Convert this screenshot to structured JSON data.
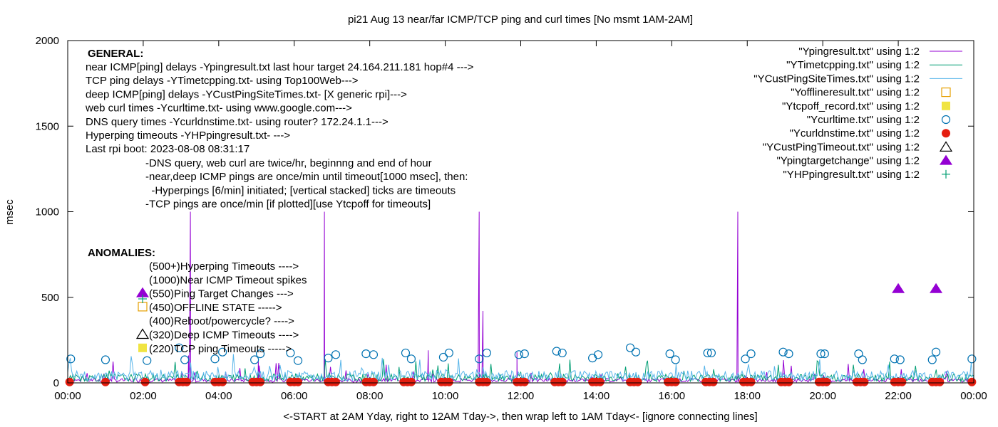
{
  "chart_data": {
    "type": "line",
    "title": "pi21 Aug 13  near/far ICMP/TCP ping and curl times [No msmt 1AM-2AM]",
    "xlabel": "<-START at 2AM Yday, right to 12AM Tday->, then wrap left to 1AM Tday<- [ignore connecting lines]",
    "ylabel": "msec",
    "ylim": [
      0,
      2000
    ],
    "xlim": [
      0,
      24
    ],
    "grid": false,
    "legend_position": "top-right",
    "y_ticks": [
      "0",
      "500",
      "1000",
      "1500",
      "2000"
    ],
    "x_ticks": [
      "00:00",
      "02:00",
      "04:00",
      "06:00",
      "08:00",
      "10:00",
      "12:00",
      "14:00",
      "16:00",
      "18:00",
      "20:00",
      "22:00",
      "00:00"
    ],
    "series": [
      {
        "name": "\"Ypingresult.txt\" using 1:2",
        "color": "#9400d3",
        "marker": "line",
        "spikes": [
          [
            3.25,
            1000
          ],
          [
            6.8,
            1000
          ],
          [
            10.9,
            1000
          ],
          [
            17.75,
            1000
          ],
          [
            3.2,
            160
          ],
          [
            5.05,
            130
          ],
          [
            9.55,
            190
          ],
          [
            11.0,
            420
          ],
          [
            11.9,
            180
          ]
        ],
        "baseline": 20
      },
      {
        "name": "\"YTimetcpping.txt\" using 1:2",
        "color": "#009e73",
        "marker": "line",
        "baseline": 40
      },
      {
        "name": "\"YCustPingSiteTimes.txt\" using 1:2",
        "color": "#56b4e9",
        "marker": "line",
        "baseline": 55
      },
      {
        "name": "\"Yofflineresult.txt\" using 1:2",
        "color": "#e69f00",
        "marker": "open-square",
        "points": []
      },
      {
        "name": "\"Ytcpoff_record.txt\" using 1:2",
        "color": "#f0e442",
        "marker": "filled-square",
        "points": []
      },
      {
        "name": "\"Ycurltime.txt\" using 1:2",
        "color": "#0072b2",
        "marker": "open-circle",
        "points": [
          [
            0.08,
            140
          ],
          [
            1.0,
            135
          ],
          [
            2.1,
            130
          ],
          [
            2.95,
            205
          ],
          [
            3.1,
            135
          ],
          [
            3.9,
            140
          ],
          [
            4.1,
            180
          ],
          [
            4.95,
            135
          ],
          [
            5.1,
            170
          ],
          [
            5.9,
            175
          ],
          [
            6.1,
            130
          ],
          [
            6.9,
            145
          ],
          [
            7.1,
            165
          ],
          [
            7.9,
            170
          ],
          [
            8.1,
            165
          ],
          [
            8.95,
            175
          ],
          [
            9.1,
            140
          ],
          [
            9.95,
            150
          ],
          [
            10.1,
            175
          ],
          [
            10.9,
            140
          ],
          [
            11.1,
            175
          ],
          [
            11.95,
            165
          ],
          [
            12.1,
            170
          ],
          [
            12.95,
            185
          ],
          [
            13.1,
            175
          ],
          [
            13.9,
            145
          ],
          [
            14.05,
            165
          ],
          [
            14.9,
            205
          ],
          [
            15.05,
            180
          ],
          [
            15.95,
            170
          ],
          [
            16.1,
            135
          ],
          [
            16.95,
            175
          ],
          [
            17.05,
            175
          ],
          [
            17.95,
            140
          ],
          [
            18.1,
            170
          ],
          [
            18.95,
            180
          ],
          [
            19.1,
            170
          ],
          [
            19.95,
            170
          ],
          [
            20.05,
            170
          ],
          [
            20.95,
            170
          ],
          [
            21.05,
            135
          ],
          [
            21.9,
            140
          ],
          [
            22.05,
            135
          ],
          [
            22.9,
            135
          ],
          [
            23.0,
            180
          ],
          [
            23.95,
            140
          ]
        ]
      },
      {
        "name": "\"Ycurldnstime.txt\" using 1:2",
        "color": "#e51e10",
        "marker": "filled-circle",
        "points": [
          [
            0.05,
            5
          ],
          [
            1.0,
            5
          ],
          [
            2.05,
            5
          ],
          [
            2.95,
            5
          ],
          [
            3.05,
            5
          ],
          [
            3.15,
            5
          ],
          [
            3.9,
            5
          ],
          [
            4.0,
            5
          ],
          [
            4.1,
            5
          ],
          [
            4.9,
            5
          ],
          [
            5.0,
            5
          ],
          [
            5.1,
            5
          ],
          [
            5.9,
            5
          ],
          [
            6.0,
            5
          ],
          [
            6.1,
            5
          ],
          [
            6.9,
            5
          ],
          [
            7.0,
            5
          ],
          [
            7.1,
            5
          ],
          [
            7.9,
            5
          ],
          [
            8.0,
            5
          ],
          [
            8.1,
            5
          ],
          [
            8.9,
            5
          ],
          [
            9.0,
            5
          ],
          [
            9.1,
            5
          ],
          [
            9.9,
            5
          ],
          [
            10.0,
            5
          ],
          [
            10.1,
            5
          ],
          [
            10.9,
            5
          ],
          [
            11.0,
            5
          ],
          [
            11.1,
            5
          ],
          [
            11.9,
            5
          ],
          [
            12.0,
            5
          ],
          [
            12.1,
            5
          ],
          [
            12.9,
            5
          ],
          [
            13.0,
            5
          ],
          [
            13.1,
            5
          ],
          [
            13.9,
            5
          ],
          [
            14.0,
            5
          ],
          [
            14.1,
            5
          ],
          [
            14.9,
            5
          ],
          [
            15.0,
            5
          ],
          [
            15.1,
            5
          ],
          [
            15.9,
            5
          ],
          [
            16.0,
            5
          ],
          [
            16.1,
            5
          ],
          [
            16.9,
            5
          ],
          [
            17.0,
            5
          ],
          [
            17.1,
            5
          ],
          [
            17.9,
            5
          ],
          [
            18.0,
            5
          ],
          [
            18.1,
            5
          ],
          [
            18.9,
            5
          ],
          [
            19.0,
            5
          ],
          [
            19.1,
            5
          ],
          [
            19.9,
            5
          ],
          [
            20.0,
            5
          ],
          [
            20.1,
            5
          ],
          [
            20.9,
            5
          ],
          [
            21.0,
            5
          ],
          [
            21.1,
            5
          ],
          [
            21.9,
            5
          ],
          [
            22.0,
            5
          ],
          [
            22.1,
            5
          ],
          [
            22.9,
            5
          ],
          [
            23.0,
            5
          ],
          [
            23.1,
            5
          ],
          [
            23.95,
            5
          ]
        ]
      },
      {
        "name": "\"YCustPingTimeout.txt\" using 1:2",
        "color": "#000000",
        "marker": "open-triangle",
        "points": []
      },
      {
        "name": "\"Ypingtargetchange\" using 1:2",
        "color": "#9400d3",
        "marker": "filled-triangle",
        "points": [
          [
            22.0,
            550
          ],
          [
            23.0,
            550
          ]
        ]
      },
      {
        "name": "\"YHPpingresult.txt\" using 1:2",
        "color": "#009e73",
        "marker": "plus",
        "points": []
      }
    ]
  },
  "annotations": {
    "general": {
      "heading": "GENERAL:",
      "lines": [
        "near ICMP[ping] delays -Ypingresult.txt last hour target 24.164.211.181 hop#4 --->",
        "TCP ping delays -YTimetcpping.txt- using Top100Web--->",
        "deep ICMP[ping] delays -YCustPingSiteTimes.txt- [X generic rpi]--->",
        "web curl times -Ycurltime.txt- using www.google.com--->",
        "DNS query times -Ycurldnstime.txt- using router? 172.24.1.1--->",
        "Hyperping timeouts -YHPpingresult.txt- --->",
        "Last rpi boot: 2023-08-08 08:31:17"
      ],
      "notes": [
        "-DNS query, web curl are twice/hr, beginnng and end of hour",
        "-near,deep ICMP pings are once/min until timeout[1000 msec], then:",
        "  -Hyperpings [6/min] initiated; [vertical stacked] ticks are timeouts",
        "-TCP pings are once/min [if plotted][use Ytcpoff for timeouts]"
      ]
    },
    "anomalies": {
      "heading": "ANOMALIES:",
      "items": [
        {
          "text": "(500+)Hyperping Timeouts ---->",
          "marker": "none"
        },
        {
          "text": "(1000)Near ICMP Timeout spikes",
          "marker": "none"
        },
        {
          "text": "(550)Ping Target Changes --->",
          "marker": "filled-triangle"
        },
        {
          "text": "(450)OFFLINE STATE ----->",
          "marker": "open-square"
        },
        {
          "text": "(400)Reboot/powercycle? ---->",
          "marker": "none"
        },
        {
          "text": "(320)Deep ICMP Timeouts ---->",
          "marker": "open-triangle"
        },
        {
          "text": "(220)TCP ping Timeouts ----->",
          "marker": "filled-square"
        }
      ]
    }
  }
}
